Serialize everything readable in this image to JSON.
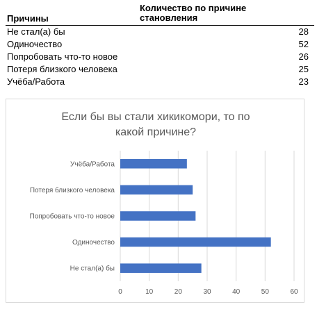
{
  "table": {
    "header_reason": "Причины",
    "header_count_line1": "Количество по причине",
    "header_count_line2": "становления",
    "rows": [
      {
        "reason": "Не стал(а) бы",
        "count": "28"
      },
      {
        "reason": "Одиночество",
        "count": "52"
      },
      {
        "reason": "Попробовать что-то новое",
        "count": "26"
      },
      {
        "reason": "Потеря близкого человека",
        "count": "25"
      },
      {
        "reason": "Учёба/Работа",
        "count": "23"
      }
    ]
  },
  "chart_data": {
    "type": "bar",
    "orientation": "horizontal",
    "title_line1": "Если бы вы стали хикикомори, то по",
    "title_line2": "какой причине?",
    "categories": [
      "Не стал(а) бы",
      "Одиночество",
      "Попробовать что-то новое",
      "Потеря близкого человека",
      "Учёба/Работа"
    ],
    "values": [
      28,
      52,
      26,
      25,
      23
    ],
    "xlim": [
      0,
      60
    ],
    "xticks": [
      0,
      10,
      20,
      30,
      40,
      50,
      60
    ],
    "grid": true,
    "legend": "none",
    "bar_color": "#4472c4"
  }
}
